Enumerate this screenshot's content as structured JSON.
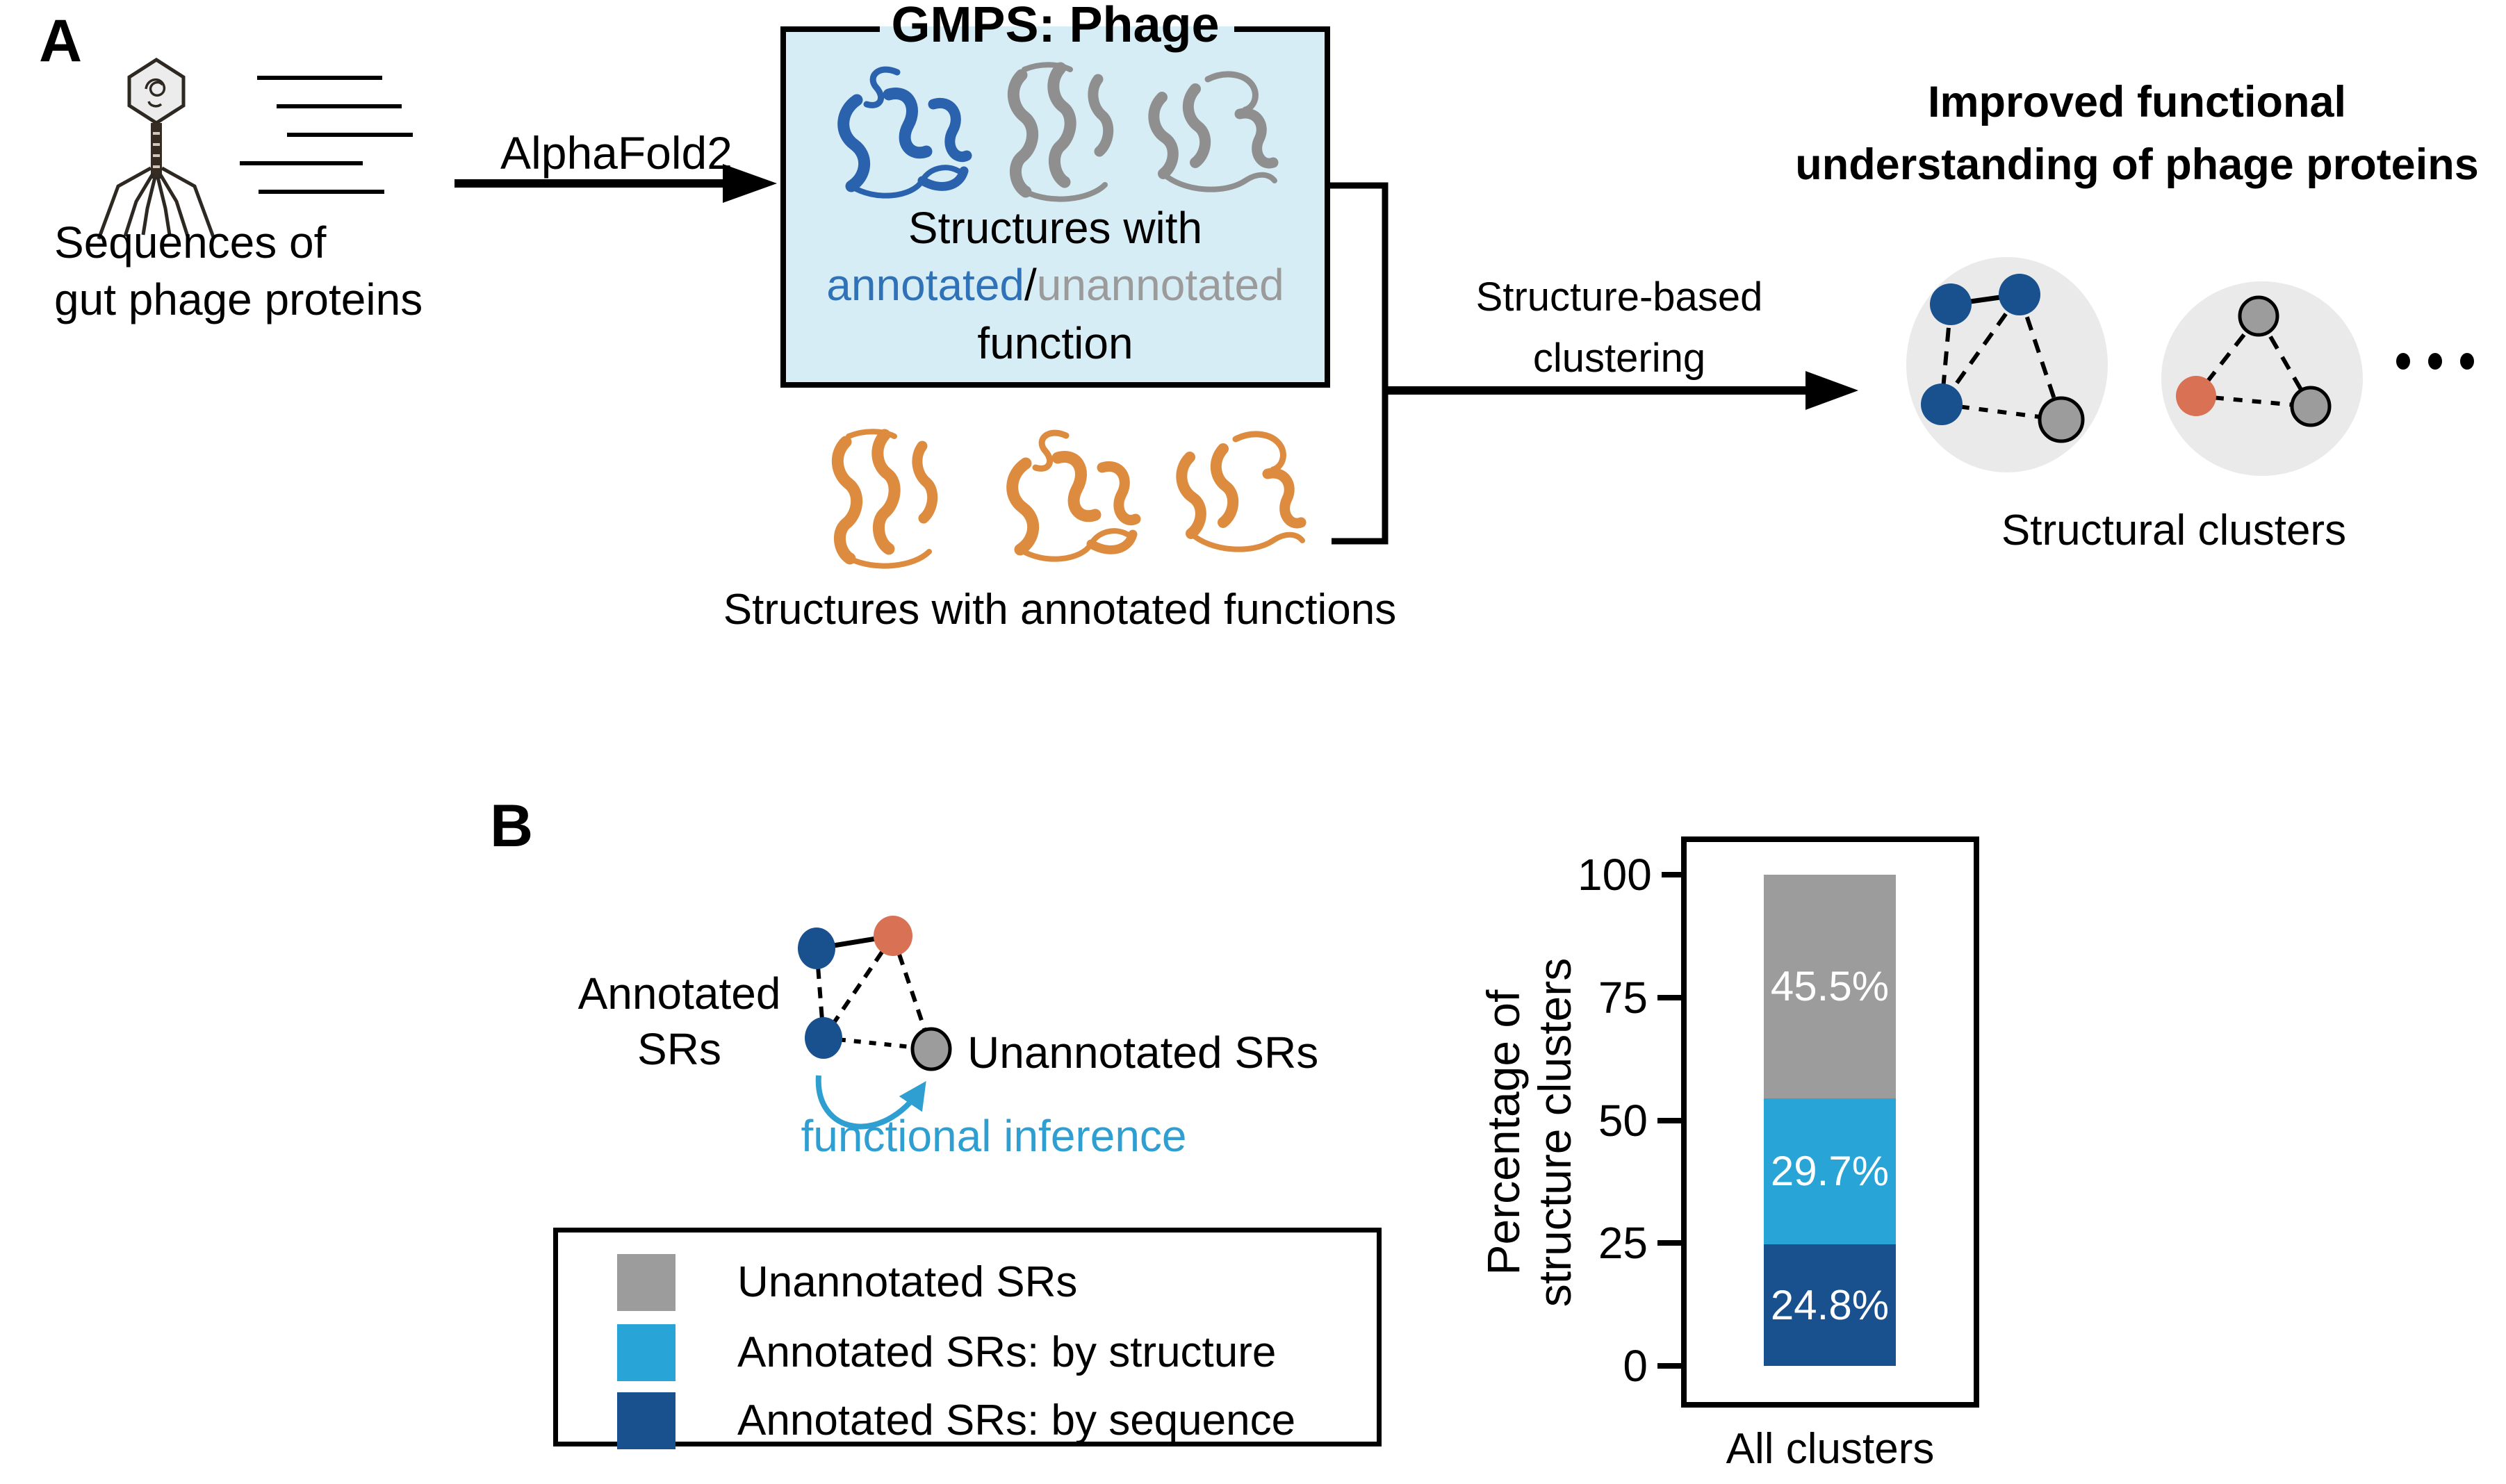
{
  "colors": {
    "dark_blue": "#19518f",
    "light_blue": "#29a4d6",
    "gray": "#9c9c9c",
    "orange_node": "#d97154",
    "cluster_bg": "#eaeaea",
    "box_bg": "#d7edf6",
    "annotated_blue": "#2f72b8",
    "unannotated_gray": "#9b9b9b",
    "inference_blue": "#2f9fd2",
    "ribbon_blue": "#2a62ad",
    "ribbon_gray": "#8f8f8f",
    "ribbon_orange": "#dd8b3e"
  },
  "panelA": {
    "label": "A",
    "sequences_caption": {
      "line1": "Sequences of",
      "line2": "gut phage proteins"
    },
    "alphafold_label": "AlphaFold2",
    "gmps_box": {
      "title": "GMPS: Phage",
      "line1": "Structures with",
      "annotated": "annotated",
      "separator": "/",
      "unannotated": "unannotated",
      "line3": "function"
    },
    "annotated_structures_caption": "Structures with annotated functions",
    "clustering_label": {
      "line1": "Structure-based",
      "line2": "clustering"
    },
    "outcome_title": {
      "line1": "Improved functional",
      "line2": "understanding of phage proteins"
    },
    "clusters_caption": "Structural clusters",
    "ellipsis_icon": "ellipsis-dots"
  },
  "panelB": {
    "label": "B",
    "annotated_label": {
      "line1": "Annotated",
      "line2": "SRs"
    },
    "unannotated_label": "Unannotated SRs",
    "inference_label": "functional inference",
    "legend": {
      "items": [
        {
          "label": "Unannotated SRs",
          "color": "#9c9c9c"
        },
        {
          "label": "Annotated SRs: by structure",
          "color": "#29a4d6"
        },
        {
          "label": "Annotated SRs: by sequence",
          "color": "#19518f"
        }
      ]
    }
  },
  "chart_data": {
    "type": "bar",
    "stacked": true,
    "categories": [
      "All clusters"
    ],
    "series": [
      {
        "name": "Annotated SRs: by sequence",
        "values": [
          24.8
        ],
        "color": "#19518f",
        "data_label": "24.8%"
      },
      {
        "name": "Annotated SRs: by structure",
        "values": [
          29.7
        ],
        "color": "#29a4d6",
        "data_label": "29.7%"
      },
      {
        "name": "Unannotated SRs",
        "values": [
          45.5
        ],
        "color": "#9c9c9c",
        "data_label": "45.5%"
      }
    ],
    "ylabel": "Percentage of structure clusters",
    "ylabel_lines": {
      "line1": "Percentage of",
      "line2": "structure clusters"
    },
    "yticks": [
      0,
      25,
      50,
      75,
      100
    ],
    "ylim": [
      0,
      100
    ],
    "grid": false,
    "legend_position": "outside-left"
  }
}
